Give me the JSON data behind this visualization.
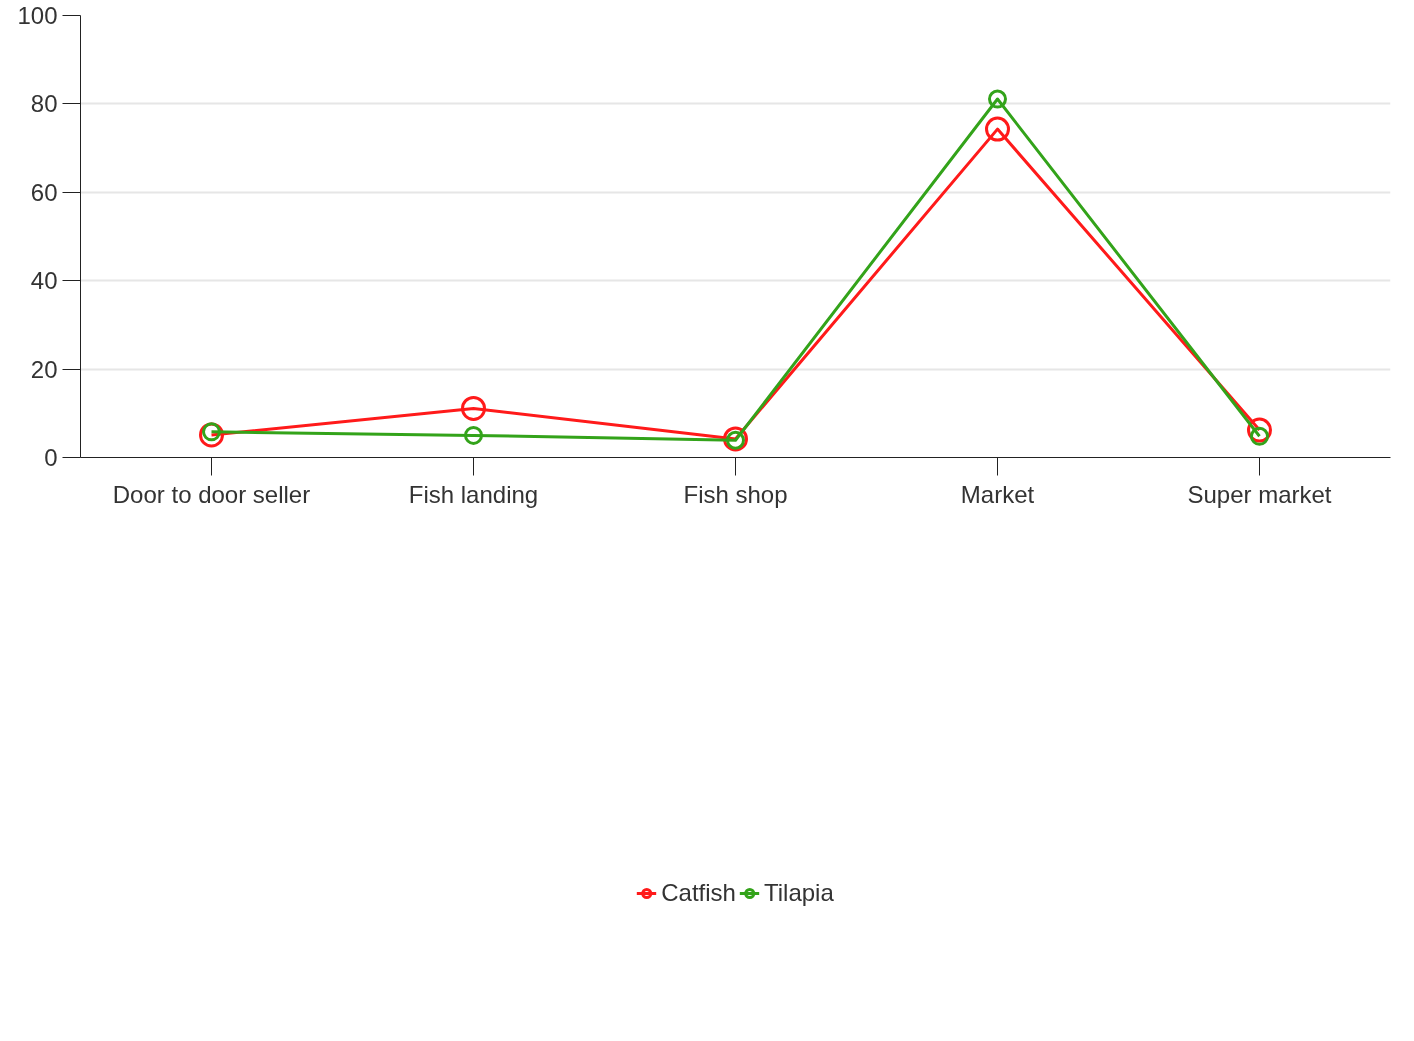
{
  "chart_data": {
    "type": "line",
    "categories": [
      "Door to door seller",
      "Fish landing",
      "Fish shop",
      "Market",
      "Super market"
    ],
    "series": [
      {
        "name": "Catfish",
        "color": "#ff1a1a",
        "values": [
          5.1,
          11.1,
          4.2,
          74.3,
          6.2
        ]
      },
      {
        "name": "Tilapia",
        "color": "#33a31a",
        "values": [
          5.8,
          5.0,
          3.9,
          81.1,
          4.8
        ]
      }
    ],
    "ylim": [
      0,
      100
    ],
    "yticks": [
      0,
      20,
      40,
      60,
      80,
      100
    ],
    "grid": "y",
    "legend": "bottom",
    "marker": "circle",
    "line_style": "solid"
  }
}
